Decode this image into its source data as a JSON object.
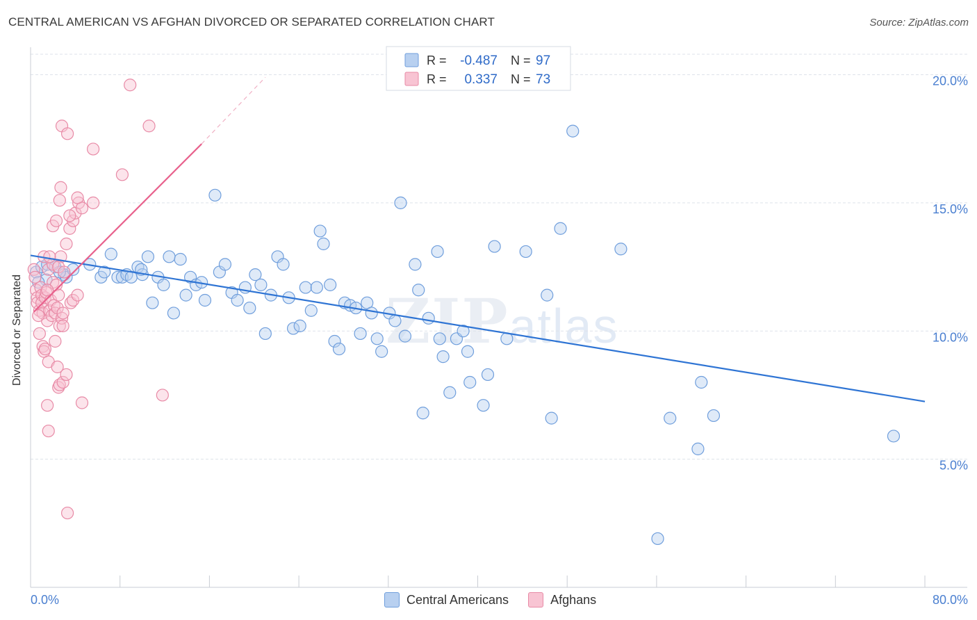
{
  "title": "CENTRAL AMERICAN VS AFGHAN DIVORCED OR SEPARATED CORRELATION CHART",
  "source_prefix": "Source: ",
  "source_name": "ZipAtlas.com",
  "watermark": {
    "zip": "ZIP",
    "atlas": "atlas"
  },
  "legend_box": [
    {
      "r_label": "R =",
      "r_value": "-0.487",
      "n_label": "N =",
      "n_value": "97",
      "fill": "#b8d0f0",
      "stroke": "#6f9edc"
    },
    {
      "r_label": "R =",
      "r_value": "0.337",
      "n_label": "N =",
      "n_value": "73",
      "fill": "#f8c4d3",
      "stroke": "#e88aa6"
    }
  ],
  "legend_bottom": [
    {
      "label": "Central Americans",
      "fill": "#b8d0f0",
      "stroke": "#6f9edc"
    },
    {
      "label": "Afghans",
      "fill": "#f8c4d3",
      "stroke": "#e88aa6"
    }
  ],
  "colors": {
    "blue": "#2e74d4",
    "pink": "#e8608c",
    "tick_text": "#4a7fd0",
    "grid": "#dde2ea"
  },
  "chart_data": {
    "type": "scatter",
    "title": "CENTRAL AMERICAN VS AFGHAN DIVORCED OR SEPARATED CORRELATION CHART",
    "xlabel": "",
    "ylabel": "Divorced or Separated",
    "xlim": [
      0,
      80
    ],
    "ylim": [
      0,
      20.8
    ],
    "x_tick_labels": [
      "0.0%",
      "80.0%"
    ],
    "y_ticks": [
      5,
      10,
      15,
      20
    ],
    "y_tick_labels": [
      "5.0%",
      "10.0%",
      "15.0%",
      "20.0%"
    ],
    "grid": true,
    "legend_position": "top-center",
    "series": [
      {
        "name": "Central Americans",
        "color": "#2e74d4",
        "trend": {
          "x": [
            0,
            80
          ],
          "y": [
            12.95,
            7.25
          ]
        },
        "points": [
          [
            0.5,
            12.3
          ],
          [
            1.0,
            12.5
          ],
          [
            1.4,
            12.0
          ],
          [
            1.5,
            12.6
          ],
          [
            2.2,
            12.5
          ],
          [
            3.0,
            12.2
          ],
          [
            3.2,
            12.1
          ],
          [
            3.8,
            12.4
          ],
          [
            5.3,
            12.6
          ],
          [
            6.3,
            12.1
          ],
          [
            6.6,
            12.3
          ],
          [
            7.2,
            13.0
          ],
          [
            7.8,
            12.1
          ],
          [
            8.2,
            12.1
          ],
          [
            8.6,
            12.2
          ],
          [
            9.0,
            12.1
          ],
          [
            9.6,
            12.5
          ],
          [
            10.0,
            12.2
          ],
          [
            10.5,
            12.9
          ],
          [
            10.9,
            11.1
          ],
          [
            11.4,
            12.1
          ],
          [
            11.9,
            11.8
          ],
          [
            12.4,
            12.9
          ],
          [
            12.8,
            10.7
          ],
          [
            13.4,
            12.8
          ],
          [
            13.9,
            11.4
          ],
          [
            14.3,
            12.1
          ],
          [
            14.8,
            11.8
          ],
          [
            15.3,
            11.9
          ],
          [
            15.6,
            11.2
          ],
          [
            16.5,
            15.3
          ],
          [
            16.9,
            12.3
          ],
          [
            17.4,
            12.6
          ],
          [
            18.0,
            11.5
          ],
          [
            18.5,
            11.2
          ],
          [
            19.2,
            11.7
          ],
          [
            19.6,
            10.9
          ],
          [
            20.1,
            12.2
          ],
          [
            20.6,
            11.8
          ],
          [
            21.0,
            9.9
          ],
          [
            21.5,
            11.4
          ],
          [
            22.1,
            12.9
          ],
          [
            22.6,
            12.6
          ],
          [
            23.1,
            11.3
          ],
          [
            23.5,
            10.1
          ],
          [
            24.1,
            10.2
          ],
          [
            24.6,
            11.7
          ],
          [
            25.1,
            10.8
          ],
          [
            25.6,
            11.7
          ],
          [
            25.9,
            13.9
          ],
          [
            26.2,
            13.4
          ],
          [
            26.8,
            11.8
          ],
          [
            27.2,
            9.6
          ],
          [
            27.6,
            9.3
          ],
          [
            28.1,
            11.1
          ],
          [
            28.6,
            11.0
          ],
          [
            29.1,
            10.9
          ],
          [
            29.5,
            9.9
          ],
          [
            30.1,
            11.1
          ],
          [
            30.5,
            10.7
          ],
          [
            31.0,
            9.7
          ],
          [
            31.4,
            9.2
          ],
          [
            32.1,
            10.7
          ],
          [
            32.6,
            10.4
          ],
          [
            33.1,
            15.0
          ],
          [
            33.5,
            9.8
          ],
          [
            34.4,
            12.6
          ],
          [
            34.7,
            11.6
          ],
          [
            35.6,
            10.5
          ],
          [
            36.4,
            13.1
          ],
          [
            36.6,
            9.7
          ],
          [
            36.9,
            9.0
          ],
          [
            37.5,
            7.6
          ],
          [
            38.1,
            9.7
          ],
          [
            38.7,
            10.0
          ],
          [
            39.1,
            9.2
          ],
          [
            39.3,
            8.0
          ],
          [
            40.5,
            7.1
          ],
          [
            40.9,
            8.3
          ],
          [
            41.5,
            13.3
          ],
          [
            42.6,
            9.7
          ],
          [
            44.3,
            13.1
          ],
          [
            46.2,
            11.4
          ],
          [
            46.6,
            6.6
          ],
          [
            47.4,
            14.0
          ],
          [
            48.5,
            17.8
          ],
          [
            52.8,
            13.2
          ],
          [
            56.1,
            1.9
          ],
          [
            57.2,
            6.6
          ],
          [
            59.7,
            5.4
          ],
          [
            60.0,
            8.0
          ],
          [
            61.1,
            6.7
          ],
          [
            77.2,
            5.9
          ],
          [
            35.1,
            6.8
          ],
          [
            0.7,
            11.9
          ],
          [
            2.6,
            12.3
          ],
          [
            9.9,
            12.4
          ]
        ]
      },
      {
        "name": "Afghans",
        "color": "#e8608c",
        "trend": {
          "x": [
            0.3,
            15.3
          ],
          "y": [
            10.75,
            17.3
          ]
        },
        "trend_dashed": {
          "x": [
            15.3,
            21.0
          ],
          "y": [
            17.3,
            19.9
          ]
        },
        "points": [
          [
            0.3,
            12.4
          ],
          [
            0.4,
            12.1
          ],
          [
            0.5,
            11.6
          ],
          [
            0.6,
            11.3
          ],
          [
            0.6,
            11.1
          ],
          [
            0.8,
            10.8
          ],
          [
            0.9,
            11.7
          ],
          [
            1.0,
            11.4
          ],
          [
            1.0,
            11.1
          ],
          [
            1.1,
            10.7
          ],
          [
            1.2,
            12.9
          ],
          [
            1.3,
            11.3
          ],
          [
            1.4,
            11.5
          ],
          [
            1.5,
            10.4
          ],
          [
            1.6,
            12.4
          ],
          [
            1.7,
            10.8
          ],
          [
            1.8,
            11.2
          ],
          [
            1.9,
            10.6
          ],
          [
            2.0,
            11.9
          ],
          [
            2.0,
            12.6
          ],
          [
            2.1,
            11.0
          ],
          [
            2.2,
            10.7
          ],
          [
            2.3,
            11.8
          ],
          [
            2.4,
            10.9
          ],
          [
            2.5,
            11.4
          ],
          [
            2.6,
            10.2
          ],
          [
            2.7,
            12.9
          ],
          [
            2.8,
            10.5
          ],
          [
            2.9,
            10.7
          ],
          [
            1.1,
            9.4
          ],
          [
            1.2,
            9.2
          ],
          [
            0.8,
            9.9
          ],
          [
            1.6,
            8.8
          ],
          [
            2.2,
            9.6
          ],
          [
            2.4,
            8.6
          ],
          [
            2.5,
            7.8
          ],
          [
            2.6,
            7.9
          ],
          [
            2.9,
            8.0
          ],
          [
            3.2,
            8.3
          ],
          [
            1.5,
            7.1
          ],
          [
            1.6,
            6.1
          ],
          [
            3.3,
            2.9
          ],
          [
            2.5,
            12.5
          ],
          [
            3.0,
            12.3
          ],
          [
            3.2,
            13.4
          ],
          [
            3.5,
            14.0
          ],
          [
            3.8,
            14.3
          ],
          [
            4.0,
            14.6
          ],
          [
            4.3,
            15.0
          ],
          [
            4.6,
            14.8
          ],
          [
            2.0,
            14.1
          ],
          [
            2.3,
            14.3
          ],
          [
            2.6,
            15.1
          ],
          [
            2.7,
            15.6
          ],
          [
            2.8,
            18.0
          ],
          [
            3.3,
            17.7
          ],
          [
            4.2,
            15.2
          ],
          [
            5.6,
            15.0
          ],
          [
            5.6,
            17.1
          ],
          [
            8.2,
            16.1
          ],
          [
            8.9,
            19.6
          ],
          [
            10.6,
            18.0
          ],
          [
            11.8,
            7.5
          ],
          [
            4.6,
            7.2
          ],
          [
            2.9,
            10.2
          ],
          [
            1.7,
            12.9
          ],
          [
            3.6,
            11.1
          ],
          [
            3.5,
            14.5
          ],
          [
            3.8,
            11.2
          ],
          [
            4.2,
            11.4
          ],
          [
            1.3,
            9.3
          ],
          [
            0.7,
            10.6
          ],
          [
            1.5,
            11.6
          ]
        ]
      }
    ]
  }
}
